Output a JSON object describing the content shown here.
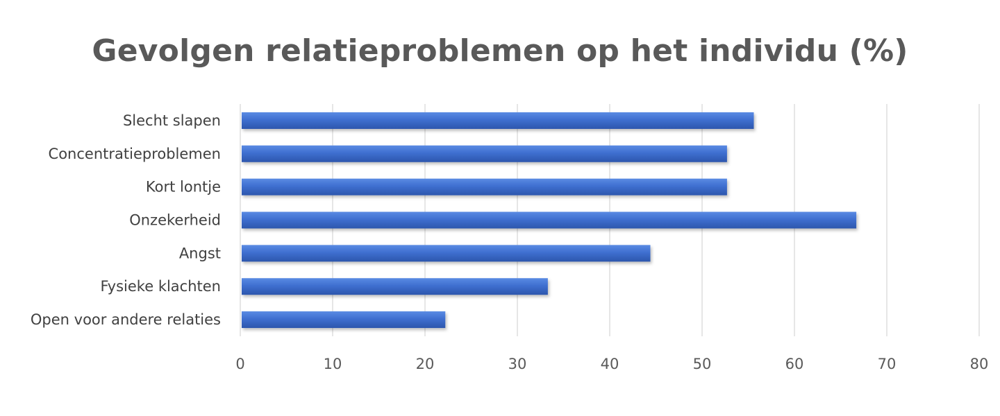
{
  "chart_data": {
    "type": "bar",
    "orientation": "horizontal",
    "title": "Gevolgen relatieproblemen op het individu (%)",
    "categories": [
      "Slecht slapen",
      "Concentratieproblemen",
      "Kort lontje",
      "Onzekerheid",
      "Angst",
      "Fysieke klachten",
      "Open voor andere relaties"
    ],
    "values": [
      55.6,
      52.7,
      52.7,
      66.7,
      44.4,
      33.3,
      22.2
    ],
    "xlim": [
      0,
      80
    ],
    "xticks": [
      0,
      10,
      20,
      30,
      40,
      50,
      60,
      70,
      80
    ],
    "grid": "vertical",
    "legend": "none",
    "colors": {
      "bar_top": "#4a7bd9",
      "bar_bottom": "#2f5cb8",
      "grid": "#d9d9d9",
      "title": "#595959",
      "labels": "#404040"
    }
  }
}
